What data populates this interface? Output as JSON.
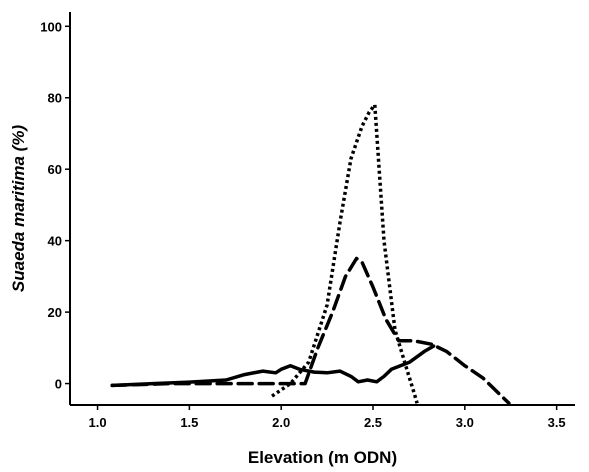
{
  "chart_data": {
    "type": "line",
    "xlabel": "Elevation (m ODN)",
    "ylabel": "Suaeda maritima (%)",
    "xlim": [
      0.85,
      3.6
    ],
    "ylim": [
      -6,
      104
    ],
    "x_ticks": [
      "1.0",
      "1.5",
      "2.0",
      "2.5",
      "3.0",
      "3.5"
    ],
    "y_ticks": [
      "0",
      "20",
      "40",
      "60",
      "80",
      "100"
    ],
    "grid": false,
    "legend": "none",
    "series": [
      {
        "style": "solid",
        "points": [
          [
            1.08,
            -0.5
          ],
          [
            1.3,
            0
          ],
          [
            1.5,
            0.4
          ],
          [
            1.7,
            1
          ],
          [
            1.8,
            2.5
          ],
          [
            1.9,
            3.5
          ],
          [
            1.97,
            3
          ],
          [
            2.0,
            4
          ],
          [
            2.05,
            5
          ],
          [
            2.1,
            4
          ],
          [
            2.18,
            3.2
          ],
          [
            2.25,
            3
          ],
          [
            2.32,
            3.5
          ],
          [
            2.38,
            2
          ],
          [
            2.42,
            0.5
          ],
          [
            2.47,
            1
          ],
          [
            2.52,
            0.5
          ],
          [
            2.56,
            2
          ],
          [
            2.6,
            4
          ],
          [
            2.7,
            6
          ],
          [
            2.78,
            9
          ],
          [
            2.83,
            10.5
          ]
        ]
      },
      {
        "style": "dashed",
        "points": [
          [
            1.08,
            -0.5
          ],
          [
            1.4,
            0
          ],
          [
            1.7,
            0
          ],
          [
            2.0,
            0
          ],
          [
            2.13,
            0
          ],
          [
            2.2,
            10
          ],
          [
            2.28,
            20
          ],
          [
            2.35,
            30
          ],
          [
            2.41,
            35
          ],
          [
            2.44,
            34
          ],
          [
            2.5,
            27
          ],
          [
            2.57,
            18
          ],
          [
            2.64,
            12
          ],
          [
            2.72,
            12
          ],
          [
            2.82,
            11
          ],
          [
            2.9,
            9
          ],
          [
            3.0,
            5
          ],
          [
            3.1,
            1.5
          ],
          [
            3.2,
            -3.5
          ],
          [
            3.24,
            -5.5
          ]
        ]
      },
      {
        "style": "dotted",
        "points": [
          [
            1.95,
            -3.5
          ],
          [
            2.05,
            0
          ],
          [
            2.15,
            6
          ],
          [
            2.25,
            22
          ],
          [
            2.32,
            45
          ],
          [
            2.38,
            63
          ],
          [
            2.44,
            72
          ],
          [
            2.48,
            76
          ],
          [
            2.51,
            78
          ],
          [
            2.56,
            40
          ],
          [
            2.62,
            15
          ],
          [
            2.69,
            3
          ],
          [
            2.72,
            -2
          ],
          [
            2.74,
            -5.5
          ]
        ]
      }
    ]
  }
}
